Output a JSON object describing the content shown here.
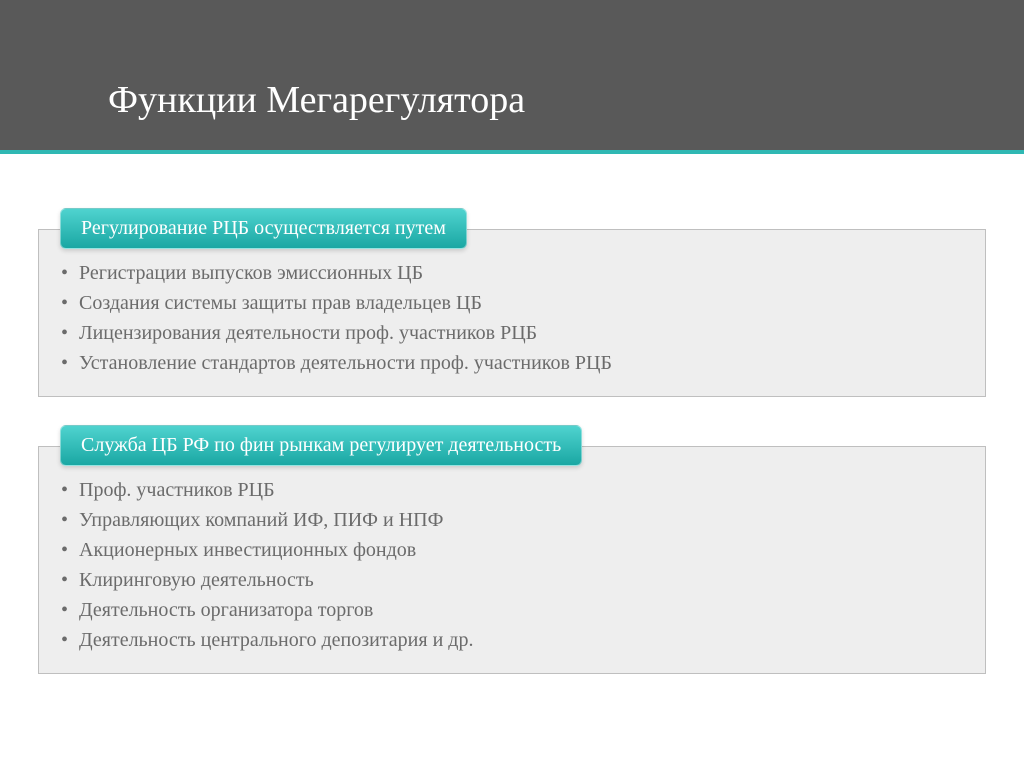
{
  "slide": {
    "title": "Функции Мегарегулятора",
    "header_bg": "#595959",
    "title_color": "#ffffff",
    "title_fontsize": 38,
    "accent_top_color": "#d5722c",
    "accent_bottom_color": "#2fb8b3"
  },
  "blocks": [
    {
      "header": "Регулирование РЦБ осуществляется путем",
      "header_bg_top": "#4fd3cf",
      "header_bg_bottom": "#1aa7a3",
      "body_bg": "#eeeeee",
      "body_border": "#bfbfbf",
      "text_color": "#6b6b6b",
      "items": [
        "Регистрации выпусков эмиссионных ЦБ",
        "Создания системы защиты прав владельцев ЦБ",
        "Лицензирования деятельности проф. участников РЦБ",
        "Установление стандартов деятельности проф. участников РЦБ"
      ]
    },
    {
      "header": "Служба ЦБ РФ по фин рынкам регулирует деятельность",
      "header_bg_top": "#4fd3cf",
      "header_bg_bottom": "#1aa7a3",
      "body_bg": "#eeeeee",
      "body_border": "#bfbfbf",
      "text_color": "#6b6b6b",
      "items": [
        "Проф. участников РЦБ",
        "Управляющих компаний ИФ, ПИФ и НПФ",
        "Акционерных инвестиционных фондов",
        "Клиринговую деятельность",
        "Деятельность организатора торгов",
        "Деятельность центрального депозитария и др."
      ]
    }
  ]
}
